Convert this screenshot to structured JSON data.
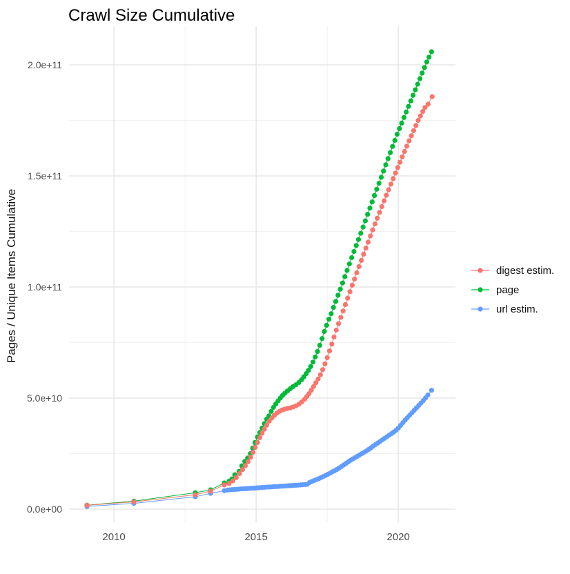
{
  "title": "Crawl Size Cumulative",
  "chart_data": {
    "type": "line",
    "title": "Crawl Size Cumulative",
    "xlabel": "",
    "ylabel": "Pages / Unique Items Cumulative",
    "grid": true,
    "legend_position": "right",
    "value_scale": "values are in units of 1e9 (billions of pages / items)",
    "xlim": [
      2008.42,
      2022.01
    ],
    "ylim_e9": [
      -5.9,
      217.4
    ],
    "x_ticks": [
      {
        "value": 2010,
        "label": "2010"
      },
      {
        "value": 2015,
        "label": "2015"
      },
      {
        "value": 2020,
        "label": "2020"
      }
    ],
    "x_minor_ticks": [
      2012.5,
      2017.5
    ],
    "y_ticks": [
      {
        "value_e9": 0,
        "label": "0.0e+00"
      },
      {
        "value_e9": 50,
        "label": "5.0e+10"
      },
      {
        "value_e9": 100,
        "label": "1.0e+11"
      },
      {
        "value_e9": 150,
        "label": "1.5e+11"
      },
      {
        "value_e9": 200,
        "label": "2.0e+11"
      }
    ],
    "y_minor_ticks": [
      25,
      75,
      125,
      175
    ],
    "series": [
      {
        "name": "url estim.",
        "color": "#619CFF",
        "points": [
          [
            2009.05,
            1.2
          ],
          [
            2010.7,
            2.6
          ],
          [
            2012.86,
            5.6
          ],
          [
            2013.4,
            7.1
          ],
          [
            2013.88,
            8.3
          ],
          [
            2014.0,
            8.6
          ],
          [
            2014.08,
            8.7
          ],
          [
            2014.16,
            8.8
          ],
          [
            2014.24,
            8.85
          ],
          [
            2014.32,
            8.9
          ],
          [
            2014.4,
            9.0
          ],
          [
            2014.48,
            9.1
          ],
          [
            2014.56,
            9.15
          ],
          [
            2014.64,
            9.2
          ],
          [
            2014.72,
            9.3
          ],
          [
            2014.8,
            9.4
          ],
          [
            2014.88,
            9.45
          ],
          [
            2014.96,
            9.5
          ],
          [
            2015.04,
            9.6
          ],
          [
            2015.12,
            9.7
          ],
          [
            2015.2,
            9.75
          ],
          [
            2015.28,
            9.8
          ],
          [
            2015.36,
            9.9
          ],
          [
            2015.44,
            9.95
          ],
          [
            2015.52,
            10.0
          ],
          [
            2015.6,
            10.1
          ],
          [
            2015.68,
            10.15
          ],
          [
            2015.76,
            10.2
          ],
          [
            2015.84,
            10.3
          ],
          [
            2015.92,
            10.35
          ],
          [
            2016.0,
            10.4
          ],
          [
            2016.08,
            10.5
          ],
          [
            2016.16,
            10.55
          ],
          [
            2016.24,
            10.6
          ],
          [
            2016.32,
            10.7
          ],
          [
            2016.4,
            10.75
          ],
          [
            2016.48,
            10.8
          ],
          [
            2016.56,
            10.9
          ],
          [
            2016.64,
            11.0
          ],
          [
            2016.72,
            11.1
          ],
          [
            2016.8,
            11.2
          ],
          [
            2016.88,
            12.0
          ],
          [
            2016.96,
            12.5
          ],
          [
            2017.04,
            12.9
          ],
          [
            2017.12,
            13.3
          ],
          [
            2017.2,
            13.7
          ],
          [
            2017.28,
            14.2
          ],
          [
            2017.36,
            14.7
          ],
          [
            2017.44,
            15.2
          ],
          [
            2017.52,
            15.7
          ],
          [
            2017.6,
            16.2
          ],
          [
            2017.68,
            16.8
          ],
          [
            2017.76,
            17.3
          ],
          [
            2017.84,
            17.9
          ],
          [
            2017.92,
            18.5
          ],
          [
            2018.0,
            19.2
          ],
          [
            2018.08,
            19.9
          ],
          [
            2018.16,
            20.6
          ],
          [
            2018.24,
            21.3
          ],
          [
            2018.32,
            22.0
          ],
          [
            2018.4,
            22.6
          ],
          [
            2018.48,
            23.2
          ],
          [
            2018.56,
            23.8
          ],
          [
            2018.64,
            24.4
          ],
          [
            2018.72,
            25.0
          ],
          [
            2018.8,
            25.6
          ],
          [
            2018.88,
            26.2
          ],
          [
            2018.96,
            26.9
          ],
          [
            2019.04,
            27.6
          ],
          [
            2019.12,
            28.4
          ],
          [
            2019.2,
            29.1
          ],
          [
            2019.28,
            29.8
          ],
          [
            2019.36,
            30.5
          ],
          [
            2019.44,
            31.2
          ],
          [
            2019.52,
            31.9
          ],
          [
            2019.6,
            32.6
          ],
          [
            2019.68,
            33.3
          ],
          [
            2019.76,
            34.0
          ],
          [
            2019.84,
            34.7
          ],
          [
            2019.92,
            35.5
          ],
          [
            2020.0,
            36.5
          ],
          [
            2020.08,
            37.7
          ],
          [
            2020.16,
            38.9
          ],
          [
            2020.24,
            40.1
          ],
          [
            2020.32,
            41.2
          ],
          [
            2020.4,
            42.3
          ],
          [
            2020.48,
            43.4
          ],
          [
            2020.56,
            44.5
          ],
          [
            2020.64,
            45.6
          ],
          [
            2020.72,
            46.7
          ],
          [
            2020.8,
            47.8
          ],
          [
            2020.88,
            48.9
          ],
          [
            2020.96,
            50.1
          ],
          [
            2021.04,
            51.4
          ],
          [
            2021.17,
            53.5
          ]
        ]
      },
      {
        "name": "page",
        "color": "#00BA38",
        "points": [
          [
            2009.05,
            1.8
          ],
          [
            2010.7,
            3.6
          ],
          [
            2012.86,
            7.4
          ],
          [
            2013.4,
            8.7
          ],
          [
            2013.88,
            11.8
          ],
          [
            2014.05,
            12.6
          ],
          [
            2014.15,
            13.6
          ],
          [
            2014.25,
            15.5
          ],
          [
            2014.4,
            17.0
          ],
          [
            2014.5,
            19.5
          ],
          [
            2014.6,
            21.5
          ],
          [
            2014.7,
            23.0
          ],
          [
            2014.8,
            25.0
          ],
          [
            2014.88,
            27.5
          ],
          [
            2014.96,
            30.0
          ],
          [
            2015.05,
            32.5
          ],
          [
            2015.13,
            34.5
          ],
          [
            2015.21,
            36.5
          ],
          [
            2015.29,
            38.5
          ],
          [
            2015.37,
            40.5
          ],
          [
            2015.45,
            42.0
          ],
          [
            2015.53,
            44.0
          ],
          [
            2015.61,
            45.8
          ],
          [
            2015.69,
            47.3
          ],
          [
            2015.77,
            48.7
          ],
          [
            2015.85,
            50.0
          ],
          [
            2015.93,
            51.2
          ],
          [
            2016.01,
            52.2
          ],
          [
            2016.1,
            53.2
          ],
          [
            2016.2,
            54.2
          ],
          [
            2016.3,
            55.2
          ],
          [
            2016.4,
            56.0
          ],
          [
            2016.5,
            57.0
          ],
          [
            2016.6,
            58.3
          ],
          [
            2016.68,
            59.6
          ],
          [
            2016.76,
            61.0
          ],
          [
            2016.84,
            62.5
          ],
          [
            2016.92,
            64.2
          ],
          [
            2017.0,
            66.2
          ],
          [
            2017.08,
            68.5
          ],
          [
            2017.16,
            71.0
          ],
          [
            2017.24,
            73.8
          ],
          [
            2017.32,
            76.8
          ],
          [
            2017.4,
            80.0
          ],
          [
            2017.48,
            82.8
          ],
          [
            2017.56,
            85.5
          ],
          [
            2017.64,
            88.0
          ],
          [
            2017.72,
            90.8
          ],
          [
            2017.8,
            93.5
          ],
          [
            2017.88,
            96.3
          ],
          [
            2017.96,
            99.0
          ],
          [
            2018.04,
            101.8
          ],
          [
            2018.12,
            104.7
          ],
          [
            2018.2,
            107.5
          ],
          [
            2018.28,
            110.4
          ],
          [
            2018.36,
            113.2
          ],
          [
            2018.44,
            116.0
          ],
          [
            2018.52,
            118.7
          ],
          [
            2018.6,
            121.4
          ],
          [
            2018.68,
            124.2
          ],
          [
            2018.76,
            127.0
          ],
          [
            2018.84,
            129.8
          ],
          [
            2018.92,
            132.7
          ],
          [
            2019.0,
            135.5
          ],
          [
            2019.08,
            138.3
          ],
          [
            2019.16,
            141.2
          ],
          [
            2019.24,
            144.0
          ],
          [
            2019.32,
            146.7
          ],
          [
            2019.4,
            149.4
          ],
          [
            2019.48,
            152.2
          ],
          [
            2019.56,
            155.0
          ],
          [
            2019.64,
            157.8
          ],
          [
            2019.72,
            160.5
          ],
          [
            2019.8,
            163.3
          ],
          [
            2019.88,
            166.0
          ],
          [
            2019.96,
            168.8
          ],
          [
            2020.04,
            171.3
          ],
          [
            2020.12,
            173.8
          ],
          [
            2020.2,
            176.3
          ],
          [
            2020.28,
            178.8
          ],
          [
            2020.36,
            181.3
          ],
          [
            2020.44,
            183.8
          ],
          [
            2020.52,
            186.3
          ],
          [
            2020.6,
            188.8
          ],
          [
            2020.68,
            191.3
          ],
          [
            2020.76,
            193.8
          ],
          [
            2020.84,
            196.3
          ],
          [
            2020.92,
            198.8
          ],
          [
            2021.0,
            201.3
          ],
          [
            2021.08,
            203.5
          ],
          [
            2021.17,
            205.9
          ]
        ]
      },
      {
        "name": "digest estim.",
        "color": "#F8766D",
        "points": [
          [
            2009.05,
            1.7
          ],
          [
            2010.7,
            3.3
          ],
          [
            2012.86,
            6.5
          ],
          [
            2013.4,
            8.1
          ],
          [
            2013.88,
            10.9
          ],
          [
            2014.05,
            11.6
          ],
          [
            2014.18,
            12.7
          ],
          [
            2014.3,
            14.2
          ],
          [
            2014.42,
            16.0
          ],
          [
            2014.52,
            17.8
          ],
          [
            2014.62,
            19.6
          ],
          [
            2014.72,
            21.4
          ],
          [
            2014.81,
            23.4
          ],
          [
            2014.89,
            25.6
          ],
          [
            2014.97,
            27.8
          ],
          [
            2015.05,
            30.0
          ],
          [
            2015.13,
            32.2
          ],
          [
            2015.21,
            34.2
          ],
          [
            2015.29,
            36.0
          ],
          [
            2015.37,
            37.8
          ],
          [
            2015.46,
            39.6
          ],
          [
            2015.55,
            41.0
          ],
          [
            2015.64,
            42.2
          ],
          [
            2015.73,
            43.2
          ],
          [
            2015.82,
            44.0
          ],
          [
            2015.91,
            44.6
          ],
          [
            2016.0,
            45.0
          ],
          [
            2016.1,
            45.3
          ],
          [
            2016.2,
            45.6
          ],
          [
            2016.3,
            46.0
          ],
          [
            2016.4,
            46.5
          ],
          [
            2016.5,
            47.2
          ],
          [
            2016.6,
            48.2
          ],
          [
            2016.7,
            49.4
          ],
          [
            2016.78,
            50.7
          ],
          [
            2016.86,
            52.0
          ],
          [
            2016.94,
            53.5
          ],
          [
            2017.02,
            55.2
          ],
          [
            2017.1,
            56.9
          ],
          [
            2017.18,
            58.6
          ],
          [
            2017.26,
            60.5
          ],
          [
            2017.34,
            62.8
          ],
          [
            2017.42,
            65.4
          ],
          [
            2017.5,
            68.2
          ],
          [
            2017.58,
            71.2
          ],
          [
            2017.66,
            74.3
          ],
          [
            2017.74,
            77.5
          ],
          [
            2017.82,
            80.6
          ],
          [
            2017.9,
            83.5
          ],
          [
            2017.98,
            86.3
          ],
          [
            2018.06,
            89.2
          ],
          [
            2018.14,
            92.1
          ],
          [
            2018.22,
            95.0
          ],
          [
            2018.3,
            97.9
          ],
          [
            2018.38,
            100.8
          ],
          [
            2018.46,
            103.6
          ],
          [
            2018.54,
            106.4
          ],
          [
            2018.62,
            109.2
          ],
          [
            2018.7,
            112.0
          ],
          [
            2018.78,
            114.8
          ],
          [
            2018.86,
            117.5
          ],
          [
            2018.94,
            120.2
          ],
          [
            2019.02,
            123.0
          ],
          [
            2019.1,
            125.7
          ],
          [
            2019.18,
            128.4
          ],
          [
            2019.26,
            131.0
          ],
          [
            2019.34,
            133.6
          ],
          [
            2019.42,
            136.2
          ],
          [
            2019.5,
            138.8
          ],
          [
            2019.58,
            141.3
          ],
          [
            2019.66,
            143.8
          ],
          [
            2019.74,
            146.3
          ],
          [
            2019.82,
            148.8
          ],
          [
            2019.9,
            151.3
          ],
          [
            2019.98,
            153.8
          ],
          [
            2020.06,
            156.2
          ],
          [
            2020.14,
            158.6
          ],
          [
            2020.22,
            161.0
          ],
          [
            2020.3,
            163.4
          ],
          [
            2020.38,
            165.8
          ],
          [
            2020.46,
            168.1
          ],
          [
            2020.54,
            170.4
          ],
          [
            2020.62,
            172.7
          ],
          [
            2020.7,
            175.0
          ],
          [
            2020.78,
            177.0
          ],
          [
            2020.86,
            179.0
          ],
          [
            2020.94,
            180.8
          ],
          [
            2021.05,
            182.3
          ],
          [
            2021.19,
            185.7
          ]
        ]
      }
    ],
    "legend_order": [
      "digest estim.",
      "page",
      "url estim."
    ]
  }
}
